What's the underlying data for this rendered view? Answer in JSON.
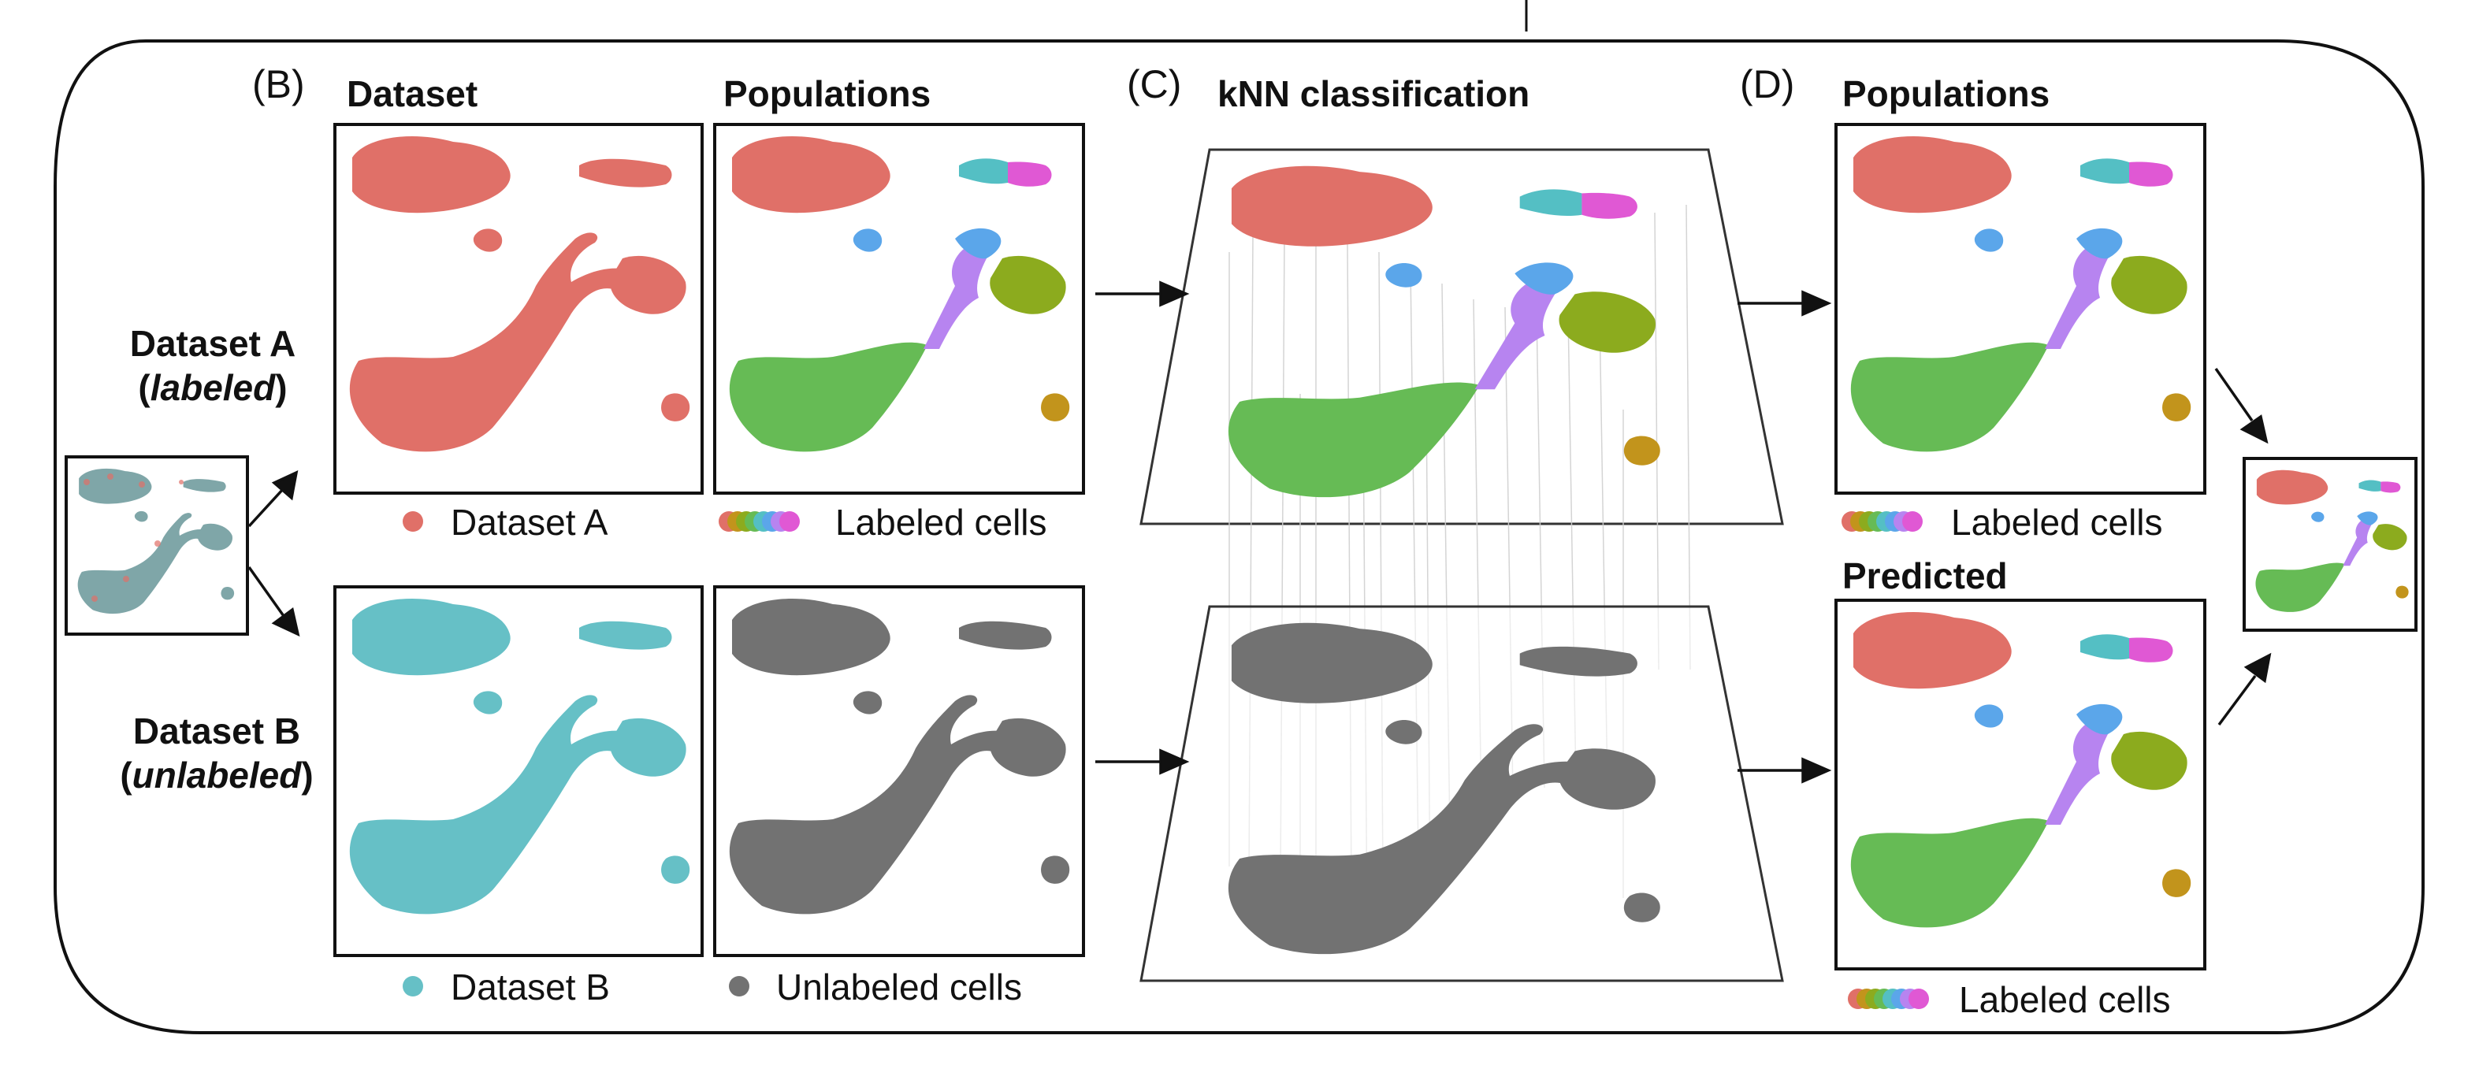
{
  "panels": {
    "b": {
      "letter": "(B)",
      "col1": "Dataset",
      "col2": "Populations"
    },
    "c": {
      "letter": "(C)",
      "title": "kNN classification"
    },
    "d": {
      "letter": "(D)",
      "title_top": "Populations",
      "title_bottom": "Predicted"
    }
  },
  "row_labels": {
    "a": {
      "name": "Dataset A",
      "open": "(",
      "tag": "labeled",
      "close": ")"
    },
    "b": {
      "name": "Dataset B",
      "open": "(",
      "tag": "unlabeled",
      "close": ")"
    }
  },
  "legends": {
    "dataset_a": "Dataset A",
    "labeled_b": "Labeled cells",
    "dataset_b": "Dataset B",
    "unlabeled": "Unlabeled cells",
    "labeled_d_top": "Labeled cells",
    "labeled_d_bottom": "Labeled cells"
  },
  "colors": {
    "dataset_a": "#e07068",
    "dataset_b": "#66c0c6",
    "unlabeled": "#727272",
    "pop_red": "#e07068",
    "pop_green": "#66bb55",
    "pop_olive": "#8cab1e",
    "pop_purple": "#b784f0",
    "pop_blue": "#5ba6ea",
    "pop_teal": "#54bfc4",
    "pop_magenta": "#e058d4",
    "pop_gold": "#c2941c",
    "knn_lines": "#d0d0d0"
  },
  "legend_swatches": [
    "#e07068",
    "#c2941c",
    "#8cab1e",
    "#66bb55",
    "#54bfc4",
    "#5ba6ea",
    "#b784f0",
    "#e058d4"
  ]
}
